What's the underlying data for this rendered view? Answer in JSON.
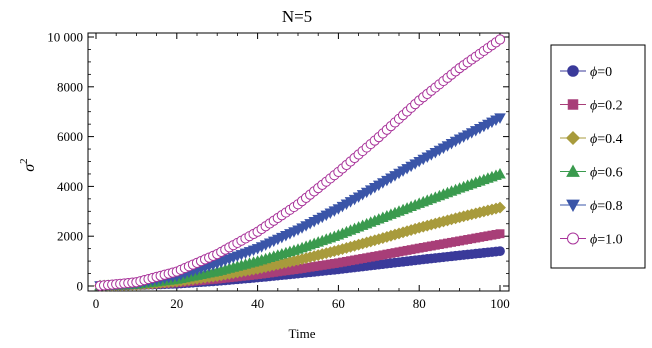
{
  "chart_data": {
    "type": "scatter",
    "title": "N=5",
    "xlabel": "Time",
    "ylabel": "σ",
    "ylabel_superscript": "2",
    "xlim": [
      0,
      100
    ],
    "ylim": [
      0,
      10000
    ],
    "x_ticks": [
      0,
      20,
      40,
      60,
      80,
      100
    ],
    "y_ticks": [
      0,
      2000,
      4000,
      6000,
      8000,
      10000
    ],
    "y_tick_labels": [
      "0",
      "2000",
      "4000",
      "6000",
      "8000",
      "10 000"
    ],
    "grid": false,
    "legend_position": "right",
    "x": [
      1,
      10,
      20,
      30,
      40,
      50,
      60,
      70,
      80,
      90,
      100
    ],
    "series": [
      {
        "name": "ϕ=0",
        "legend_symbol": "ϕ",
        "legend_value": "=0",
        "color": "#3a3a9a",
        "marker": "circle",
        "filled": true,
        "values": [
          10,
          35,
          90,
          200,
          340,
          500,
          670,
          860,
          1050,
          1230,
          1400
        ]
      },
      {
        "name": "ϕ=0.2",
        "legend_symbol": "ϕ",
        "legend_value": "=0.2",
        "color": "#a83e78",
        "marker": "square",
        "filled": true,
        "values": [
          10,
          40,
          130,
          280,
          460,
          680,
          930,
          1220,
          1520,
          1810,
          2100
        ]
      },
      {
        "name": "ϕ=0.4",
        "legend_symbol": "ϕ",
        "legend_value": "=0.4",
        "color": "#a89b3c",
        "marker": "diamond",
        "filled": true,
        "values": [
          10,
          50,
          180,
          400,
          690,
          1040,
          1440,
          1880,
          2340,
          2760,
          3150
        ]
      },
      {
        "name": "ϕ=0.6",
        "legend_symbol": "ϕ",
        "legend_value": "=0.6",
        "color": "#3a9a4e",
        "marker": "triangle-up",
        "filled": true,
        "values": [
          10,
          70,
          270,
          590,
          1000,
          1480,
          2050,
          2690,
          3320,
          3930,
          4500
        ]
      },
      {
        "name": "ϕ=0.8",
        "legend_symbol": "ϕ",
        "legend_value": "=0.8",
        "color": "#3a55a8",
        "marker": "triangle-down",
        "filled": true,
        "values": [
          10,
          110,
          400,
          900,
          1500,
          2250,
          3100,
          4050,
          5000,
          5900,
          6750
        ]
      },
      {
        "name": "ϕ=1.0",
        "legend_symbol": "ϕ",
        "legend_value": "=1.0",
        "color": "#a8339a",
        "marker": "circle",
        "filled": false,
        "values": [
          10,
          150,
          580,
          1280,
          2180,
          3280,
          4580,
          5980,
          7450,
          8750,
          9900
        ]
      }
    ]
  }
}
